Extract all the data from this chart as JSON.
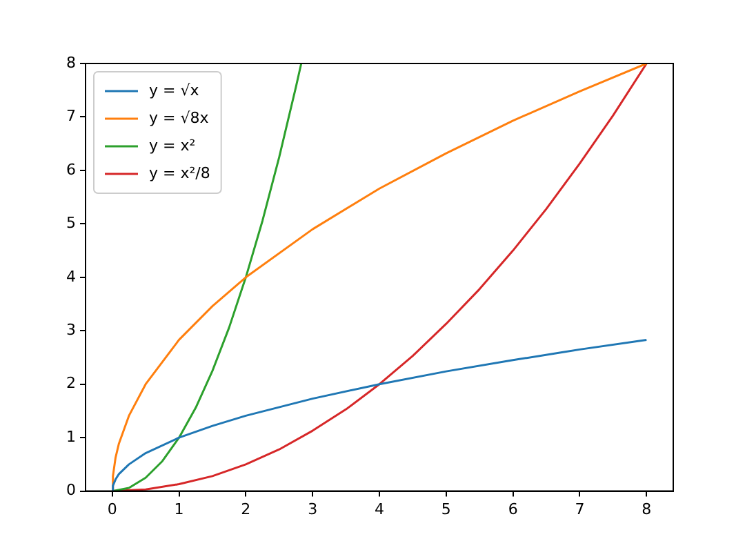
{
  "chart_data": {
    "type": "line",
    "xlim": [
      -0.4,
      8.4
    ],
    "ylim": [
      0,
      8
    ],
    "xticks": [
      0,
      1,
      2,
      3,
      4,
      5,
      6,
      7,
      8
    ],
    "yticks": [
      0,
      1,
      2,
      3,
      4,
      5,
      6,
      7,
      8
    ],
    "grid": false,
    "legend": "top left",
    "marker": "none",
    "line_style": "solid",
    "series": [
      {
        "name": "y = √x",
        "color": "#1f77b4",
        "x": [
          0,
          0.01,
          0.05,
          0.1,
          0.25,
          0.5,
          1,
          1.5,
          2,
          3,
          4,
          5,
          6,
          7,
          8
        ],
        "values": [
          0,
          0.1,
          0.22,
          0.32,
          0.5,
          0.71,
          1,
          1.22,
          1.41,
          1.73,
          2,
          2.24,
          2.45,
          2.65,
          2.83
        ]
      },
      {
        "name": "y = √8x",
        "color": "#ff7f0e",
        "x": [
          0,
          0.01,
          0.05,
          0.1,
          0.25,
          0.5,
          1,
          1.5,
          2,
          3,
          4,
          5,
          6,
          7,
          8
        ],
        "values": [
          0,
          0.28,
          0.63,
          0.89,
          1.41,
          2,
          2.83,
          3.46,
          4,
          4.9,
          5.66,
          6.32,
          6.93,
          7.48,
          8
        ]
      },
      {
        "name": "y = x²",
        "color": "#2ca02c",
        "x": [
          0,
          0.25,
          0.5,
          0.75,
          1,
          1.25,
          1.5,
          1.75,
          2,
          2.25,
          2.5,
          2.75,
          2.83
        ],
        "values": [
          0,
          0.06,
          0.25,
          0.56,
          1,
          1.56,
          2.25,
          3.06,
          4,
          5.06,
          6.25,
          7.56,
          8
        ]
      },
      {
        "name": "y = x²/8",
        "color": "#d62728",
        "x": [
          0,
          0.5,
          1,
          1.5,
          2,
          2.5,
          3,
          3.5,
          4,
          4.5,
          5,
          5.5,
          6,
          6.5,
          7,
          7.5,
          8
        ],
        "values": [
          0,
          0.03,
          0.13,
          0.28,
          0.5,
          0.78,
          1.13,
          1.53,
          2,
          2.53,
          3.13,
          3.78,
          4.5,
          5.28,
          6.13,
          7.03,
          8
        ]
      }
    ]
  }
}
